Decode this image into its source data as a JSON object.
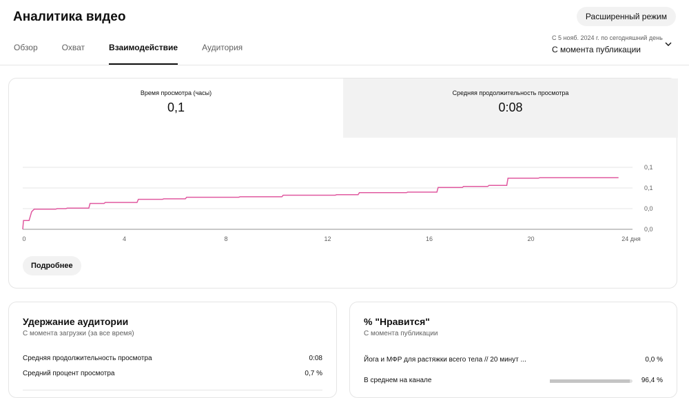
{
  "header": {
    "title": "Аналитика видео",
    "advanced_button": "Расширенный режим",
    "tabs": [
      {
        "label": "Обзор",
        "active": false
      },
      {
        "label": "Охват",
        "active": false
      },
      {
        "label": "Взаимодействие",
        "active": true
      },
      {
        "label": "Аудитория",
        "active": false
      }
    ],
    "date_range": {
      "period": "С 5 нояб. 2024 г. по сегодняшний день",
      "label": "С момента публикации"
    }
  },
  "metrics": [
    {
      "label": "Время просмотра (часы)",
      "value": "0,1",
      "selected": false
    },
    {
      "label": "Средняя продолжительность просмотра",
      "value": "0:08",
      "selected": true
    }
  ],
  "chart_data": {
    "type": "line",
    "x_ticks": [
      "0",
      "4",
      "8",
      "12",
      "16",
      "20",
      "24 дня"
    ],
    "y_ticks": [
      "0,1",
      "0,1",
      "0,0",
      "0,0"
    ],
    "xlim": [
      0,
      24
    ],
    "ylim": [
      0,
      0.12
    ],
    "color": "#e0589f",
    "series": [
      {
        "points": [
          [
            0.0,
            0.0
          ],
          [
            0.03,
            0.017
          ],
          [
            0.25,
            0.017
          ],
          [
            0.35,
            0.034
          ],
          [
            0.45,
            0.039
          ],
          [
            1.3,
            0.039
          ],
          [
            1.35,
            0.04
          ],
          [
            1.7,
            0.04
          ],
          [
            1.75,
            0.041
          ],
          [
            2.6,
            0.041
          ],
          [
            2.65,
            0.05
          ],
          [
            3.2,
            0.05
          ],
          [
            3.25,
            0.052
          ],
          [
            4.5,
            0.052
          ],
          [
            4.55,
            0.058
          ],
          [
            5.5,
            0.058
          ],
          [
            5.55,
            0.059
          ],
          [
            6.4,
            0.059
          ],
          [
            6.45,
            0.062
          ],
          [
            8.5,
            0.062
          ],
          [
            8.55,
            0.063
          ],
          [
            10.2,
            0.063
          ],
          [
            10.25,
            0.066
          ],
          [
            12.3,
            0.066
          ],
          [
            12.35,
            0.067
          ],
          [
            13.2,
            0.067
          ],
          [
            13.25,
            0.071
          ],
          [
            15.1,
            0.071
          ],
          [
            15.15,
            0.072
          ],
          [
            16.3,
            0.072
          ],
          [
            16.35,
            0.081
          ],
          [
            17.3,
            0.081
          ],
          [
            17.35,
            0.083
          ],
          [
            18.3,
            0.083
          ],
          [
            18.35,
            0.085
          ],
          [
            19.05,
            0.085
          ],
          [
            19.1,
            0.099
          ],
          [
            20.3,
            0.099
          ],
          [
            20.35,
            0.1
          ],
          [
            23.45,
            0.1
          ]
        ]
      }
    ]
  },
  "more_button": "Подробнее",
  "retention": {
    "title": "Удержание аудитории",
    "subtitle": "С момента загрузки (за все время)",
    "rows": [
      {
        "label": "Средняя продолжительность просмотра",
        "value": "0:08"
      },
      {
        "label": "Средний процент просмотра",
        "value": "0,7 %"
      }
    ]
  },
  "likes": {
    "title": "% \"Нравится\"",
    "subtitle": "С момента публикации",
    "rows": [
      {
        "label": "Йога и МФР для растяжки всего тела // 20 минут ...",
        "value": "0,0 %",
        "bar": 0
      },
      {
        "label": "В среднем на канале",
        "value": "96,4 %",
        "bar": 0.964
      }
    ]
  }
}
